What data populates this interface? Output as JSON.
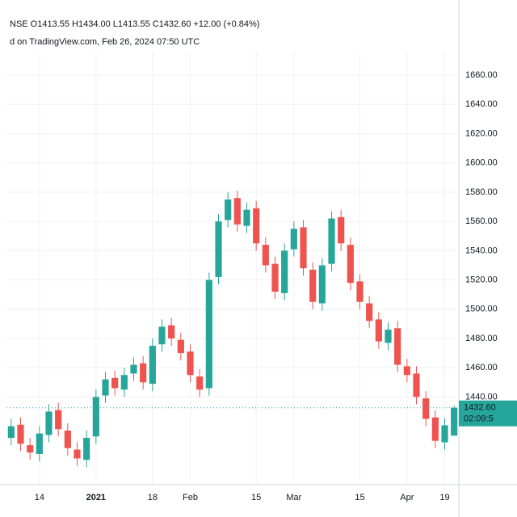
{
  "chart_data": {
    "type": "candlestick",
    "legend_text": "NSE O1413.55 H1434.00 L1413.55 C1432.60 +12.00 (+0.84%)",
    "published_text": "d on TradingView.com, Feb 26, 2024 07:50 UTC",
    "categories": [
      null,
      null,
      null,
      "14",
      null,
      null,
      null,
      null,
      null,
      "2021",
      null,
      null,
      null,
      null,
      null,
      "18",
      null,
      null,
      null,
      "Feb",
      null,
      null,
      null,
      null,
      null,
      null,
      "15",
      null,
      null,
      null,
      "Mar",
      null,
      null,
      null,
      null,
      null,
      null,
      "15",
      null,
      null,
      null,
      null,
      "Apr",
      null,
      null,
      null,
      "19",
      null
    ],
    "open": [
      1412,
      1421,
      1407,
      1401,
      1414,
      1431,
      1417,
      1404,
      1397,
      1413,
      1441,
      1453,
      1445,
      1456,
      1463,
      1449,
      1476,
      1489,
      1479,
      1471,
      1454,
      1446,
      1522,
      1561,
      1576,
      1557,
      1569,
      1544,
      1531,
      1511,
      1541,
      1556,
      1527,
      1504,
      1531,
      1563,
      1544,
      1519,
      1504,
      1493,
      1477,
      1487,
      1461,
      1456,
      1439,
      1426,
      1409,
      1413.55
    ],
    "high": [
      1425,
      1426,
      1412,
      1420,
      1435,
      1436,
      1422,
      1409,
      1417,
      1445,
      1457,
      1458,
      1460,
      1467,
      1468,
      1480,
      1493,
      1494,
      1484,
      1476,
      1459,
      1525,
      1565,
      1580,
      1581,
      1573,
      1574,
      1549,
      1536,
      1545,
      1560,
      1561,
      1532,
      1535,
      1567,
      1568,
      1549,
      1524,
      1509,
      1498,
      1491,
      1492,
      1466,
      1461,
      1444,
      1431,
      1425.6,
      1434
    ],
    "low": [
      1407,
      1403,
      1397,
      1396,
      1409,
      1413,
      1400,
      1393,
      1392,
      1408,
      1436,
      1441,
      1440,
      1451,
      1445,
      1444,
      1471,
      1475,
      1465,
      1450,
      1440,
      1441,
      1517,
      1556,
      1553,
      1552,
      1540,
      1525,
      1507,
      1506,
      1536,
      1523,
      1500,
      1499,
      1526,
      1540,
      1513,
      1500,
      1487,
      1473,
      1472,
      1457,
      1450,
      1435,
      1420,
      1405,
      1404,
      1413.55
    ],
    "close": [
      1420,
      1408,
      1402,
      1415,
      1430,
      1418,
      1405,
      1398,
      1412,
      1440,
      1452,
      1446,
      1455,
      1462,
      1450,
      1475,
      1488,
      1480,
      1470,
      1455,
      1445,
      1520,
      1560,
      1575,
      1558,
      1568,
      1545,
      1530,
      1512,
      1540,
      1555,
      1528,
      1505,
      1530,
      1562,
      1545,
      1518,
      1505,
      1492,
      1478,
      1486,
      1462,
      1455,
      1440,
      1425,
      1410,
      1420.6,
      1432.6
    ],
    "up_color": "#26a69a",
    "down_color": "#ef5350",
    "ylim": [
      1380,
      1670
    ],
    "yticks": [
      {
        "value": 1440,
        "label": "1440.00"
      },
      {
        "value": 1460,
        "label": "1460.00"
      },
      {
        "value": 1480,
        "label": "1480.00"
      },
      {
        "value": 1500,
        "label": "1500.00"
      },
      {
        "value": 1520,
        "label": "1520.00"
      },
      {
        "value": 1540,
        "label": "1540.00"
      },
      {
        "value": 1560,
        "label": "1560.00"
      },
      {
        "value": 1580,
        "label": "1580.00"
      },
      {
        "value": 1600,
        "label": "1600.00"
      },
      {
        "value": 1620,
        "label": "1620.00"
      },
      {
        "value": 1640,
        "label": "1640.00"
      },
      {
        "value": 1660,
        "label": "1660.00"
      }
    ],
    "last_price": {
      "value": 1432.6,
      "label": "1432.60"
    },
    "countdown": "02:09:5",
    "grid": true
  }
}
